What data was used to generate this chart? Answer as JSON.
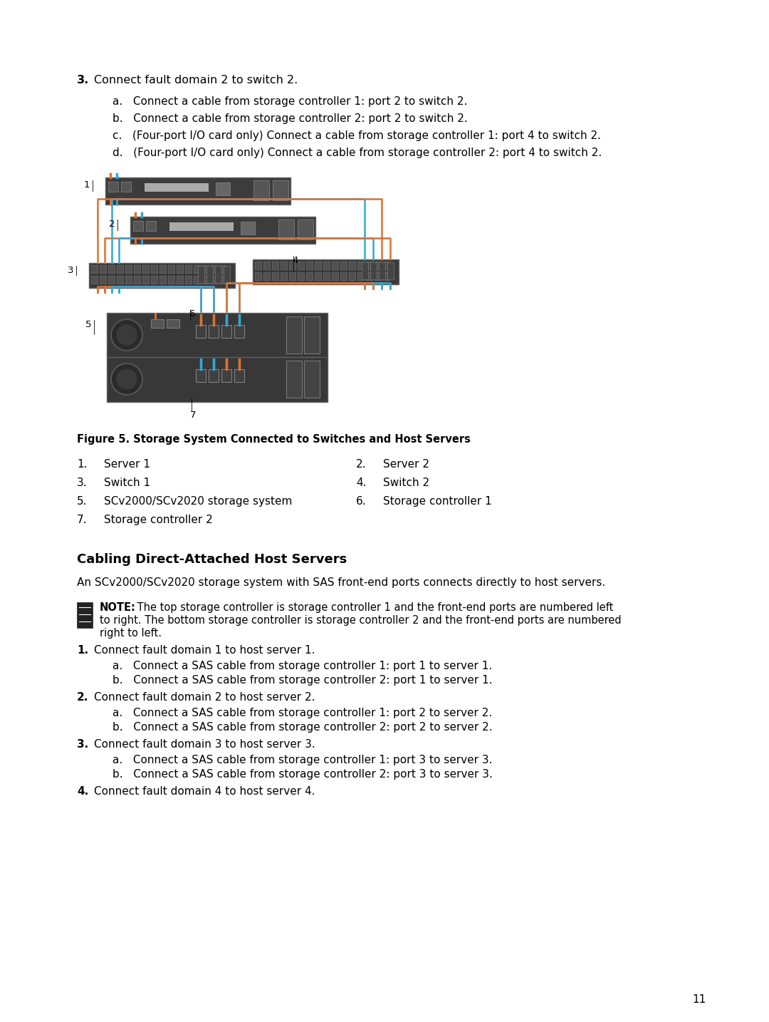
{
  "bg_color": "#ffffff",
  "text_color": "#000000",
  "page_number": "11",
  "section3_title": "Connect fault domain 2 to switch 2.",
  "section3_items": [
    "a.   Connect a cable from storage controller 1: port 2 to switch 2.",
    "b.   Connect a cable from storage controller 2: port 2 to switch 2.",
    "c.   (Four-port I/O card only) Connect a cable from storage controller 1: port 4 to switch 2.",
    "d.   (Four-port I/O card only) Connect a cable from storage controller 2: port 4 to switch 2."
  ],
  "figure_caption": "Figure 5. Storage System Connected to Switches and Host Servers",
  "legend_items": [
    [
      "1.",
      "Server 1",
      "2.",
      "Server 2"
    ],
    [
      "3.",
      "Switch 1",
      "4.",
      "Switch 2"
    ],
    [
      "5.",
      "SCv2000/SCv2020 storage system",
      "6.",
      "Storage controller 1"
    ],
    [
      "7.",
      "Storage controller 2",
      "",
      ""
    ]
  ],
  "section_heading": "Cabling Direct-Attached Host Servers",
  "section_intro": "An SCv2000/SCv2020 storage system with SAS front-end ports connects directly to host servers.",
  "note_bold": "NOTE:",
  "note_line1": " The top storage controller is storage controller 1 and the front-end ports are numbered left",
  "note_line2": "to right. The bottom storage controller is storage controller 2 and the front-end ports are numbered",
  "note_line3": "right to left.",
  "steps": [
    {
      "num": "1.",
      "text": "Connect fault domain 1 to host server 1.",
      "sub": [
        "a.   Connect a SAS cable from storage controller 1: port 1 to server 1.",
        "b.   Connect a SAS cable from storage controller 2: port 1 to server 1."
      ]
    },
    {
      "num": "2.",
      "text": "Connect fault domain 2 to host server 2.",
      "sub": [
        "a.   Connect a SAS cable from storage controller 1: port 2 to server 2.",
        "b.   Connect a SAS cable from storage controller 2: port 2 to server 2."
      ]
    },
    {
      "num": "3.",
      "text": "Connect fault domain 3 to host server 3.",
      "sub": [
        "a.   Connect a SAS cable from storage controller 1: port 3 to server 3.",
        "b.   Connect a SAS cable from storage controller 2: port 3 to server 3."
      ]
    },
    {
      "num": "4.",
      "text": "Connect fault domain 4 to host server 4.",
      "sub": []
    }
  ],
  "orange_color": "#E07030",
  "blue_color": "#30A8D8",
  "dark_gray": "#3a3a3a",
  "device_gray": "#404040",
  "port_gray": "#555555"
}
